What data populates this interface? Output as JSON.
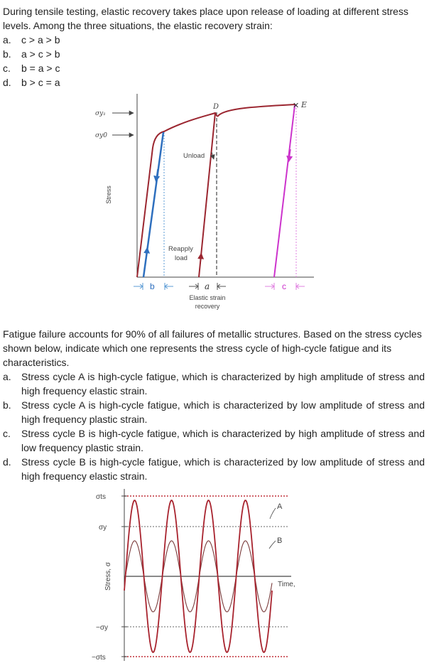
{
  "q1": {
    "stem": "During tensile testing, elastic recovery takes place upon release of loading at different stress levels. Among the three situations, the elastic recovery strain:",
    "options": [
      {
        "letter": "a.",
        "text": "c > a > b"
      },
      {
        "letter": "b.",
        "text": "a > c > b"
      },
      {
        "letter": "c.",
        "text": "b = a > c"
      },
      {
        "letter": "d.",
        "text": "b > c = a"
      }
    ],
    "figure": {
      "labels": {
        "sigma_y1": "σy₁",
        "sigma_y0": "σy0",
        "point_d": "D",
        "point_e": "E",
        "unload": "Unload",
        "reapply_1": "Reapply",
        "reapply_2": "load",
        "y_axis": "Stress",
        "b": "b",
        "a": "a",
        "c": "c",
        "recovery_1": "Elastic strain",
        "recovery_2": "recovery"
      },
      "colors": {
        "curve": "#9b2630",
        "blue": "#2e6fbe",
        "magenta": "#cc33cc",
        "axis": "#444444"
      }
    }
  },
  "q2": {
    "stem": "Fatigue failure accounts for 90% of all failures of metallic structures. Based on the stress cycles shown below, indicate which one represents the stress cycle of high-cycle fatigue and its characteristics.",
    "options": [
      {
        "letter": "a.",
        "text": "Stress cycle A is high-cycle fatigue, which is characterized by high amplitude of stress and high frequency elastic strain."
      },
      {
        "letter": "b.",
        "text": "Stress cycle A is high-cycle fatigue, which is characterized by low amplitude of stress and high frequency plastic strain."
      },
      {
        "letter": "c.",
        "text": "Stress cycle B is high-cycle fatigue, which is characterized by high amplitude of stress and low frequency plastic strain."
      },
      {
        "letter": "d.",
        "text": "Stress cycle B is high-cycle fatigue, which is characterized by low amplitude of stress and high frequency elastic strain."
      }
    ],
    "figure": {
      "labels": {
        "sigma_ts": "σts",
        "sigma_y": "σy",
        "neg_sigma_y": "−σy",
        "neg_sigma_ts": "−σts",
        "y_axis": "Stress, σ",
        "x_axis": "Time, t",
        "curve_a": "A",
        "curve_b": "B"
      },
      "colors": {
        "curve_a": "#a8232e",
        "curve_b": "#7a3b3b",
        "dotted_ts": "#c0303a",
        "dotted_y": "#666666",
        "axis": "#444444"
      }
    }
  }
}
